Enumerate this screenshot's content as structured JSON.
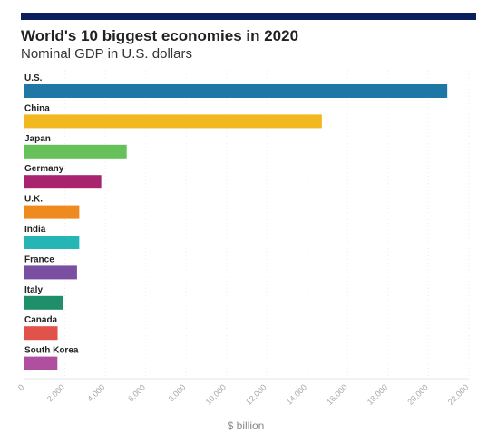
{
  "header": {
    "title": "World's 10 biggest economies in 2020",
    "subtitle": "Nominal GDP in U.S. dollars"
  },
  "colors": {
    "top_bar": "#0b1f5e"
  },
  "chart_data": {
    "type": "bar",
    "orientation": "horizontal",
    "title": "World's 10 biggest economies in 2020",
    "subtitle": "Nominal GDP in U.S. dollars",
    "xlabel": "$ billion",
    "ylabel": "",
    "categories": [
      "U.S.",
      "China",
      "Japan",
      "Germany",
      "U.K.",
      "India",
      "France",
      "Italy",
      "Canada",
      "South Korea"
    ],
    "values": [
      20930,
      14720,
      5060,
      3800,
      2710,
      2710,
      2600,
      1890,
      1640,
      1630
    ],
    "colors": [
      "#1f77a6",
      "#f2b81f",
      "#67c15a",
      "#a8246e",
      "#ee8a1e",
      "#26b5b5",
      "#7a4ea0",
      "#1e8f6a",
      "#e0524a",
      "#b04ea0"
    ],
    "xlim": [
      0,
      22000
    ],
    "xticks": [
      "0",
      "2,000",
      "4,000",
      "6,000",
      "8,000",
      "10,000",
      "12,000",
      "14,000",
      "16,000",
      "18,000",
      "20,000",
      "22,000"
    ],
    "grid": true,
    "legend": "none"
  }
}
